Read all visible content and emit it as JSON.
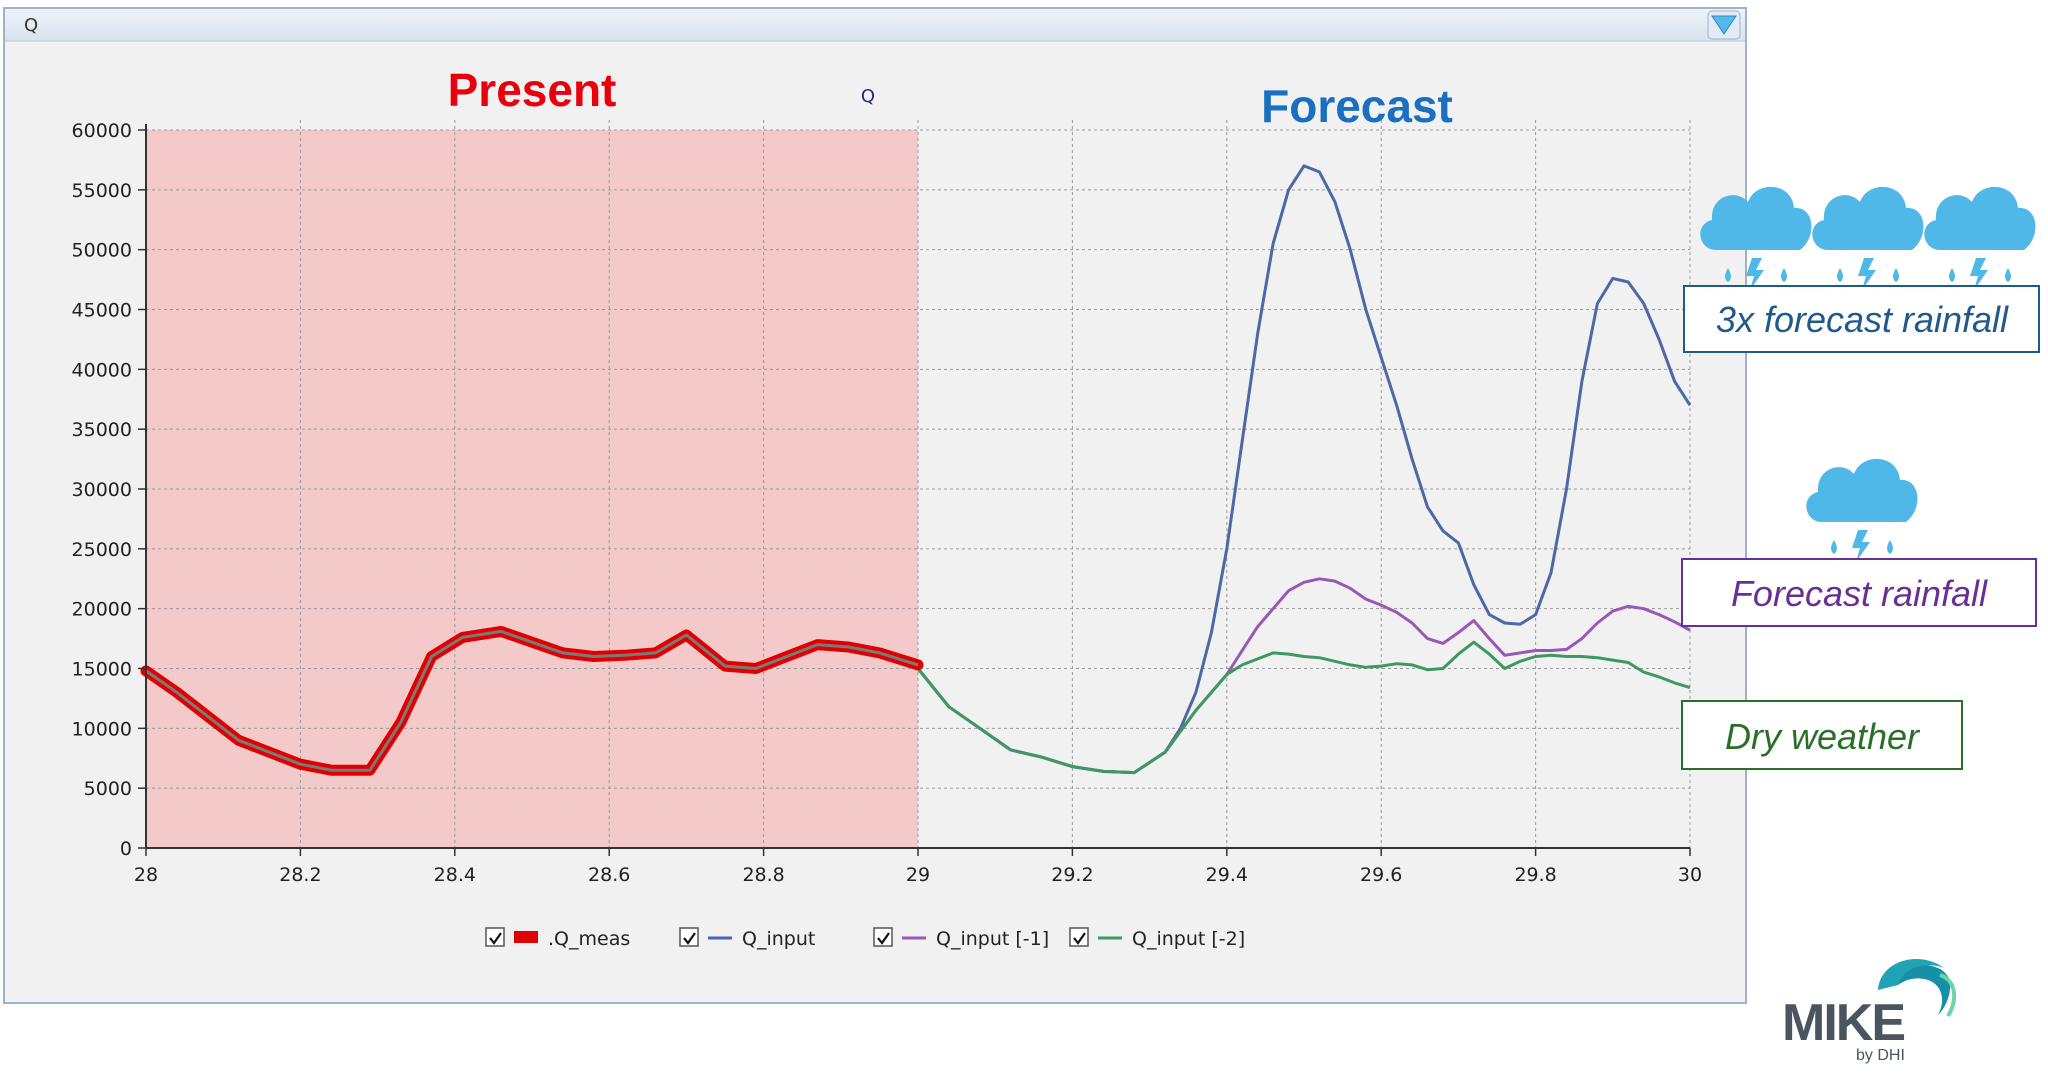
{
  "window": {
    "title": "Q"
  },
  "labels": {
    "present": "Present",
    "forecast": "Forecast"
  },
  "annotations": [
    {
      "id": "three-x",
      "text": "3x forecast rainfall",
      "color": "#1f5a8a"
    },
    {
      "id": "forecast",
      "text": "Forecast rainfall",
      "color": "#6a2f95"
    },
    {
      "id": "dry",
      "text": "Dry weather",
      "color": "#2a6e2a"
    }
  ],
  "logo": {
    "text": "MIKE",
    "sub": "by DHI"
  },
  "colors": {
    "present_band": "#f4c9ca",
    "meas": "#e00000",
    "meas_core": "#7a7a7a",
    "input": "#4c68a6",
    "input_m1": "#9a57b6",
    "input_m2": "#3e9960",
    "cloud": "#4fb8e8"
  },
  "chart_data": {
    "type": "line",
    "title": "Q",
    "xlim": [
      28,
      30
    ],
    "ylim": [
      0,
      60000
    ],
    "x_ticks": [
      "28",
      "28.2",
      "28.4",
      "28.6",
      "28.8",
      "29",
      "29.2",
      "29.4",
      "29.6",
      "29.8",
      "30"
    ],
    "y_ticks": [
      "0",
      "5000",
      "10000",
      "15000",
      "20000",
      "25000",
      "30000",
      "35000",
      "40000",
      "45000",
      "50000",
      "55000",
      "60000"
    ],
    "grid": true,
    "legend_position": "bottom",
    "shaded_region": {
      "label": "Present",
      "x": [
        28,
        29
      ]
    },
    "series": [
      {
        "name": ".Q_meas",
        "color": "#e00000",
        "x": [
          28,
          28.04,
          28.08,
          28.12,
          28.16,
          28.2,
          28.24,
          28.29,
          28.33,
          28.37,
          28.41,
          28.46,
          28.5,
          28.54,
          28.58,
          28.62,
          28.66,
          28.7,
          28.75,
          28.79,
          28.83,
          28.87,
          28.91,
          28.95,
          29
        ],
        "values": [
          14800,
          13000,
          11000,
          9000,
          8000,
          7000,
          6500,
          6500,
          10500,
          16000,
          17600,
          18100,
          17200,
          16300,
          16000,
          16100,
          16300,
          17800,
          15200,
          15000,
          16000,
          17000,
          16800,
          16300,
          15300
        ]
      },
      {
        "name": "Q_input",
        "color": "#4c68a6",
        "x": [
          29,
          29.04,
          29.08,
          29.12,
          29.16,
          29.2,
          29.24,
          29.28,
          29.32,
          29.34,
          29.36,
          29.38,
          29.4,
          29.42,
          29.44,
          29.46,
          29.48,
          29.5,
          29.52,
          29.54,
          29.56,
          29.58,
          29.6,
          29.62,
          29.64,
          29.66,
          29.68,
          29.7,
          29.72,
          29.74,
          29.76,
          29.78,
          29.8,
          29.82,
          29.84,
          29.86,
          29.88,
          29.9,
          29.92,
          29.94,
          29.96,
          29.98,
          30
        ],
        "values": [
          15000,
          11800,
          10000,
          8200,
          7600,
          6800,
          6400,
          6300,
          8000,
          10000,
          13000,
          18000,
          25000,
          34000,
          43000,
          50500,
          55000,
          57000,
          56500,
          54000,
          50000,
          45000,
          41000,
          37000,
          32500,
          28500,
          26500,
          25500,
          22000,
          19500,
          18800,
          18700,
          19500,
          23000,
          30000,
          39000,
          45500,
          47600,
          47300,
          45500,
          42500,
          39000,
          37000
        ]
      },
      {
        "name": "Q_input [-1]",
        "color": "#9a57b6",
        "x": [
          29,
          29.04,
          29.08,
          29.12,
          29.16,
          29.2,
          29.24,
          29.28,
          29.32,
          29.36,
          29.4,
          29.42,
          29.44,
          29.46,
          29.48,
          29.5,
          29.52,
          29.54,
          29.56,
          29.58,
          29.6,
          29.62,
          29.64,
          29.66,
          29.68,
          29.7,
          29.72,
          29.74,
          29.76,
          29.78,
          29.8,
          29.82,
          29.84,
          29.86,
          29.88,
          29.9,
          29.92,
          29.94,
          29.96,
          29.98,
          30
        ],
        "values": [
          15000,
          11800,
          10000,
          8200,
          7600,
          6800,
          6400,
          6300,
          8000,
          11500,
          14500,
          16500,
          18500,
          20000,
          21500,
          22200,
          22500,
          22300,
          21700,
          20800,
          20300,
          19700,
          18800,
          17500,
          17100,
          18000,
          19000,
          17500,
          16100,
          16300,
          16500,
          16500,
          16600,
          17500,
          18800,
          19800,
          20200,
          20000,
          19500,
          18900,
          18200
        ]
      },
      {
        "name": "Q_input [-2]",
        "color": "#3e9960",
        "x": [
          29,
          29.04,
          29.08,
          29.12,
          29.16,
          29.2,
          29.24,
          29.28,
          29.32,
          29.36,
          29.4,
          29.42,
          29.44,
          29.46,
          29.48,
          29.5,
          29.52,
          29.54,
          29.56,
          29.58,
          29.6,
          29.62,
          29.64,
          29.66,
          29.68,
          29.7,
          29.72,
          29.74,
          29.76,
          29.78,
          29.8,
          29.82,
          29.84,
          29.86,
          29.88,
          29.9,
          29.92,
          29.94,
          29.96,
          29.98,
          30
        ],
        "values": [
          15000,
          11800,
          10000,
          8200,
          7600,
          6800,
          6400,
          6300,
          8000,
          11500,
          14500,
          15300,
          15800,
          16300,
          16200,
          16000,
          15900,
          15600,
          15300,
          15100,
          15200,
          15400,
          15300,
          14900,
          15000,
          16200,
          17200,
          16200,
          15000,
          15600,
          16000,
          16100,
          16000,
          16000,
          15900,
          15700,
          15500,
          14700,
          14300,
          13800,
          13400
        ]
      }
    ]
  }
}
